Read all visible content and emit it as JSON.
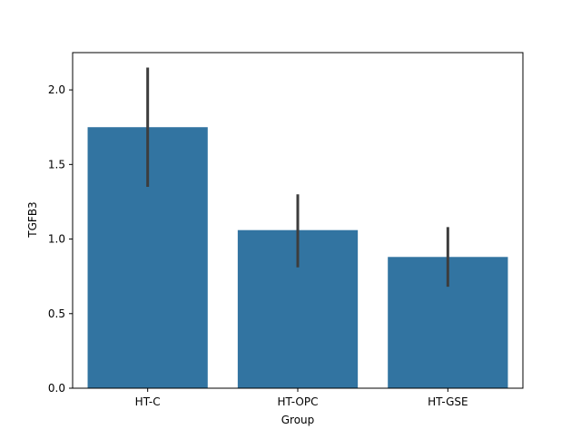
{
  "chart_data": {
    "type": "bar",
    "title": "",
    "xlabel": "Group",
    "ylabel": "TGFB3",
    "categories": [
      "HT-C",
      "HT-OPC",
      "HT-GSE"
    ],
    "values": [
      1.75,
      1.06,
      0.88
    ],
    "error_low": [
      1.35,
      0.81,
      0.68
    ],
    "error_high": [
      2.15,
      1.3,
      1.08
    ],
    "ylim": [
      0,
      2.25
    ],
    "yticks": [
      0.0,
      0.5,
      1.0,
      1.5,
      2.0
    ],
    "ytick_labels": [
      "0.0",
      "0.5",
      "1.0",
      "1.5",
      "2.0"
    ],
    "grid": false,
    "colors": {
      "bar": "#3274a1",
      "errorbar": "#3d3d3d"
    }
  }
}
